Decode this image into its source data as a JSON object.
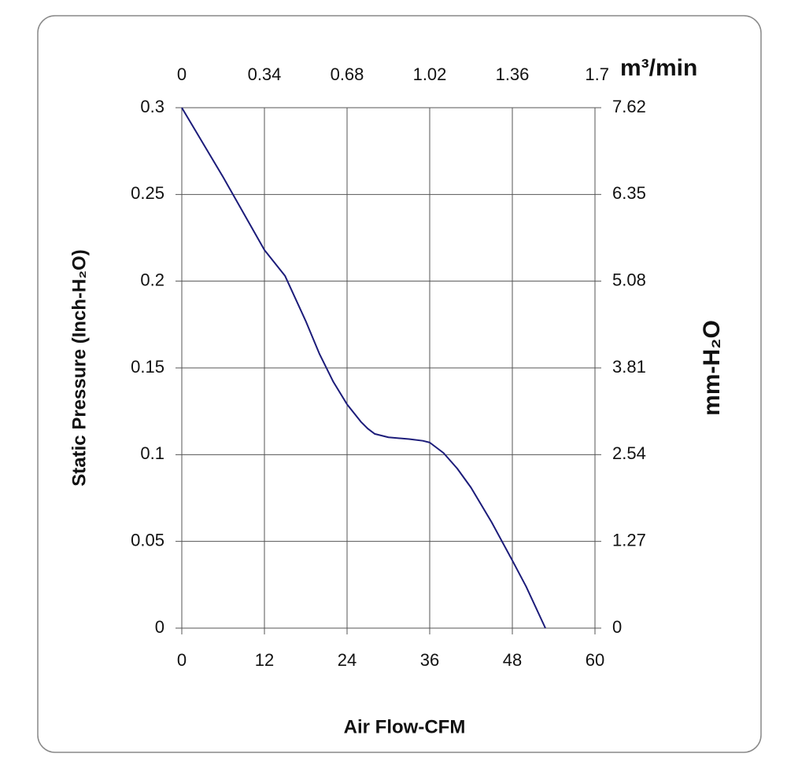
{
  "chart_data": {
    "type": "line",
    "xlabel": "Air Flow-CFM",
    "ylabel": "Static Pressure (Inch-H₂O)",
    "x2label": "m³/min",
    "y2label": "mm-H₂O",
    "xlim": [
      0,
      60
    ],
    "xticks": [
      0,
      12,
      24,
      36,
      48,
      60
    ],
    "ylim": [
      0,
      0.3
    ],
    "yticks": [
      0,
      0.05,
      0.1,
      0.15,
      0.2,
      0.25,
      0.3
    ],
    "x2lim": [
      0,
      1.7
    ],
    "x2ticks": [
      0,
      0.34,
      0.68,
      1.02,
      1.36,
      1.7
    ],
    "y2lim": [
      0,
      7.62
    ],
    "y2ticks": [
      0,
      1.27,
      2.54,
      3.81,
      5.08,
      6.35,
      7.62
    ],
    "grid": true,
    "series": [
      {
        "color": "#1c1c7a",
        "x": [
          0,
          6,
          12,
          15,
          18,
          20,
          22,
          24,
          26,
          27,
          28,
          30,
          33,
          35,
          36,
          37,
          38,
          40,
          42,
          45,
          48,
          50,
          52.8
        ],
        "values": [
          0.3,
          0.26,
          0.218,
          0.203,
          0.177,
          0.158,
          0.142,
          0.129,
          0.119,
          0.115,
          0.112,
          0.11,
          0.109,
          0.108,
          0.107,
          0.104,
          0.101,
          0.092,
          0.081,
          0.061,
          0.039,
          0.024,
          0
        ]
      }
    ]
  }
}
